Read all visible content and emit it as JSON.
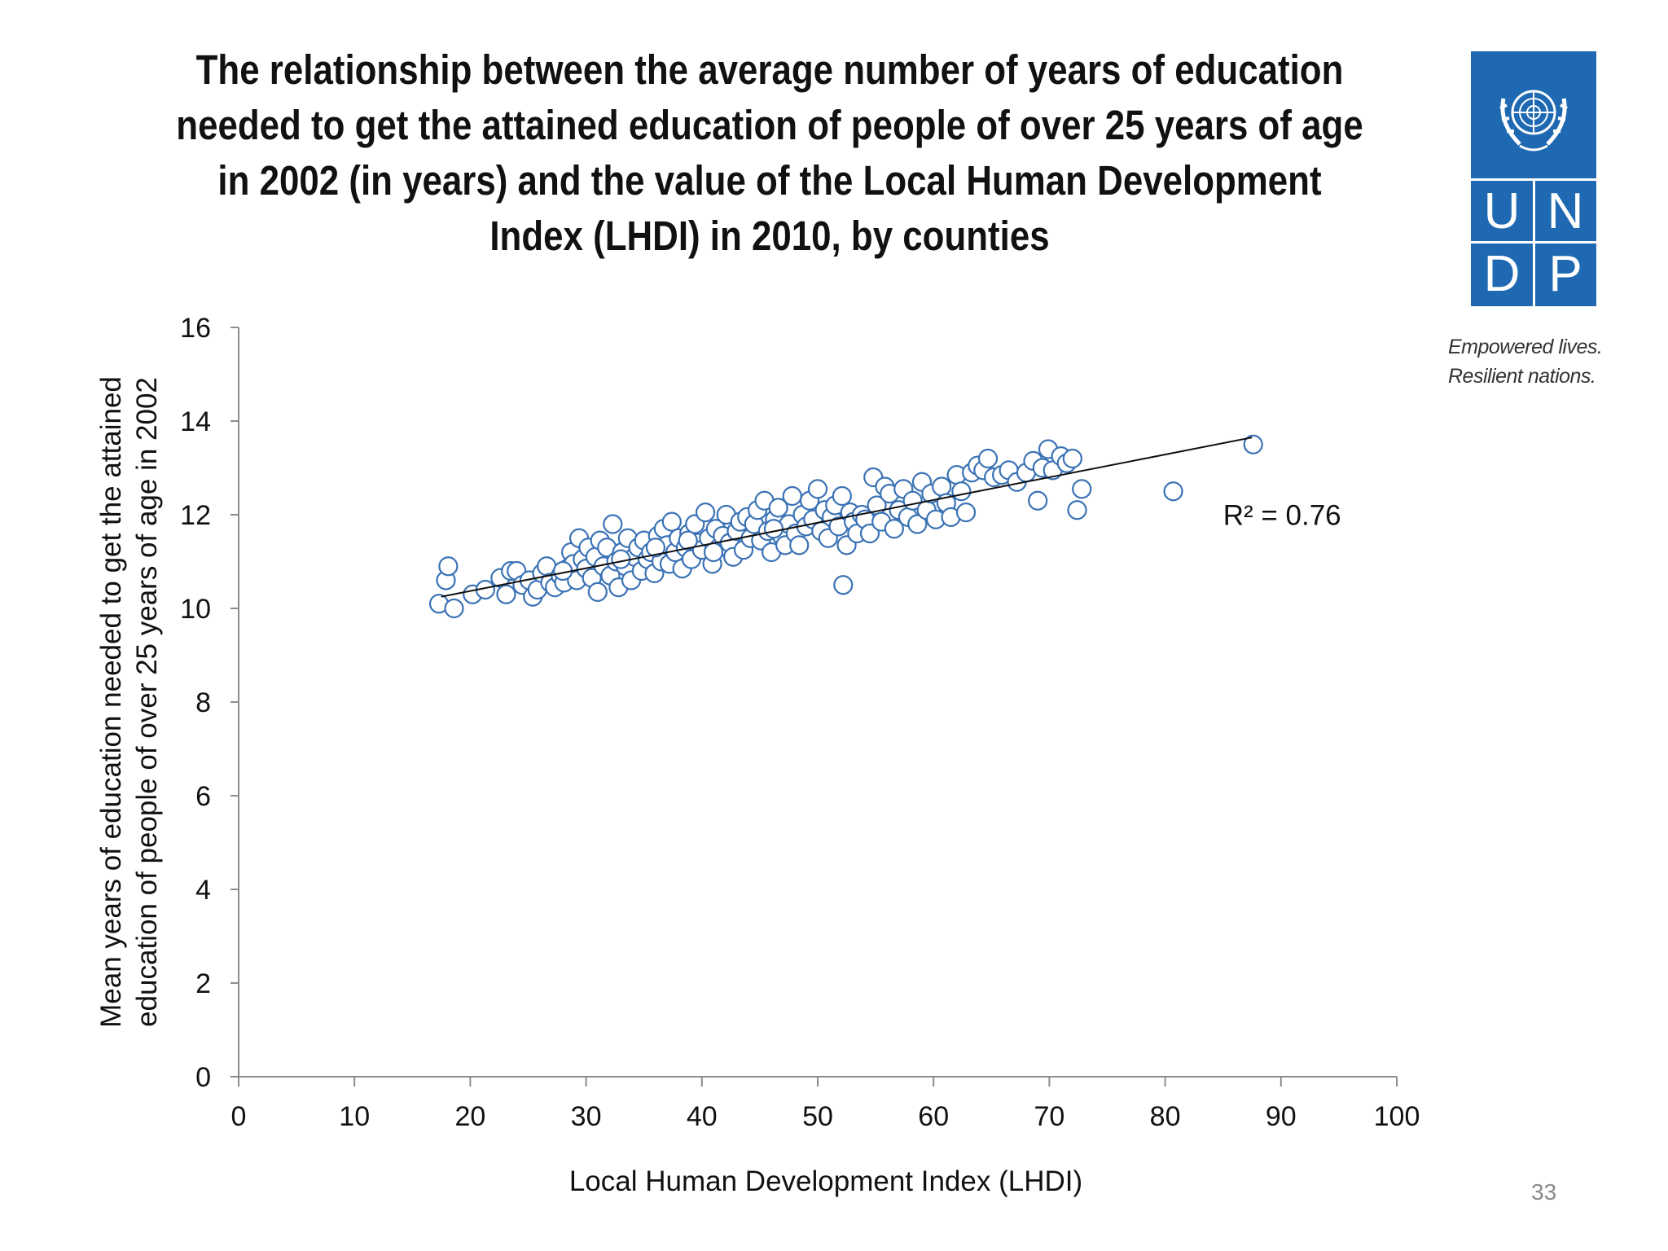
{
  "slide": {
    "title": "The relationship between the average number of years of education needed to get the attained education of people of over 25 years of age in 2002 (in years) and the value of the Local Human Development Index (LHDI) in 2010, by counties",
    "page_number": "33"
  },
  "logo": {
    "letters": [
      "U",
      "N",
      "D",
      "P"
    ],
    "tagline_line1": "Empowered lives.",
    "tagline_line2": "Resilient nations.",
    "color": "#1e69b2"
  },
  "chart_data": {
    "type": "scatter",
    "xlabel": "Local Human Development Index (LHDI)",
    "ylabel_line1": "Mean years of education needed to get the attained",
    "ylabel_line2": "education of people of over 25 years of age in 2002",
    "xlim": [
      0,
      100
    ],
    "ylim": [
      0,
      16
    ],
    "x_ticks": [
      "0",
      "10",
      "20",
      "30",
      "40",
      "50",
      "60",
      "70",
      "80",
      "90",
      "100"
    ],
    "y_ticks": [
      "0",
      "2",
      "4",
      "6",
      "8",
      "10",
      "12",
      "14",
      "16"
    ],
    "annotation": "R² = 0.76",
    "trendline": {
      "x": [
        17.5,
        87.5
      ],
      "y": [
        10.25,
        13.65
      ]
    },
    "marker_color": "#3a72b5",
    "grid": false,
    "points": [
      [
        17.3,
        10.1
      ],
      [
        17.9,
        10.6
      ],
      [
        18.1,
        10.9
      ],
      [
        18.6,
        10.0
      ],
      [
        20.2,
        10.3
      ],
      [
        21.3,
        10.4
      ],
      [
        22.6,
        10.65
      ],
      [
        23.1,
        10.3
      ],
      [
        23.5,
        10.8
      ],
      [
        24.0,
        10.8
      ],
      [
        24.5,
        10.5
      ],
      [
        25.1,
        10.6
      ],
      [
        25.4,
        10.25
      ],
      [
        25.8,
        10.4
      ],
      [
        26.2,
        10.75
      ],
      [
        26.6,
        10.9
      ],
      [
        26.9,
        10.55
      ],
      [
        27.3,
        10.45
      ],
      [
        27.8,
        10.7
      ],
      [
        28.1,
        10.55
      ],
      [
        28.4,
        10.85
      ],
      [
        28.7,
        11.2
      ],
      [
        28.9,
        10.95
      ],
      [
        29.2,
        10.6
      ],
      [
        29.4,
        11.5
      ],
      [
        29.7,
        11.05
      ],
      [
        30.0,
        10.85
      ],
      [
        30.2,
        11.3
      ],
      [
        30.5,
        10.65
      ],
      [
        30.8,
        11.1
      ],
      [
        31.0,
        10.35
      ],
      [
        31.2,
        11.45
      ],
      [
        31.5,
        10.9
      ],
      [
        31.8,
        11.3
      ],
      [
        32.1,
        10.7
      ],
      [
        32.3,
        11.8
      ],
      [
        32.6,
        11.0
      ],
      [
        32.8,
        10.45
      ],
      [
        33.1,
        11.2
      ],
      [
        33.4,
        10.9
      ],
      [
        33.6,
        11.5
      ],
      [
        33.9,
        10.6
      ],
      [
        34.2,
        11.1
      ],
      [
        34.5,
        11.3
      ],
      [
        34.8,
        10.8
      ],
      [
        35.0,
        11.45
      ],
      [
        35.3,
        11.05
      ],
      [
        35.6,
        11.2
      ],
      [
        35.9,
        10.75
      ],
      [
        36.2,
        11.55
      ],
      [
        36.5,
        11.0
      ],
      [
        36.7,
        11.7
      ],
      [
        37.0,
        11.35
      ],
      [
        37.2,
        10.95
      ],
      [
        37.4,
        11.85
      ],
      [
        37.7,
        11.2
      ],
      [
        38.0,
        11.5
      ],
      [
        38.3,
        10.85
      ],
      [
        38.6,
        11.3
      ],
      [
        38.9,
        11.6
      ],
      [
        39.1,
        11.05
      ],
      [
        39.4,
        11.8
      ],
      [
        39.7,
        11.4
      ],
      [
        40.0,
        11.25
      ],
      [
        40.3,
        12.05
      ],
      [
        40.6,
        11.5
      ],
      [
        40.9,
        10.95
      ],
      [
        41.2,
        11.7
      ],
      [
        41.5,
        11.3
      ],
      [
        41.8,
        11.55
      ],
      [
        42.1,
        12.0
      ],
      [
        42.4,
        11.4
      ],
      [
        42.7,
        11.1
      ],
      [
        43.0,
        11.65
      ],
      [
        43.3,
        11.85
      ],
      [
        43.6,
        11.25
      ],
      [
        43.9,
        11.95
      ],
      [
        44.2,
        11.5
      ],
      [
        44.5,
        11.8
      ],
      [
        44.8,
        12.1
      ],
      [
        45.1,
        11.45
      ],
      [
        45.4,
        12.3
      ],
      [
        45.7,
        11.65
      ],
      [
        46.0,
        11.2
      ],
      [
        46.3,
        11.9
      ],
      [
        46.6,
        12.15
      ],
      [
        46.9,
        11.55
      ],
      [
        47.2,
        11.35
      ],
      [
        47.5,
        11.8
      ],
      [
        47.8,
        12.4
      ],
      [
        48.1,
        11.6
      ],
      [
        48.4,
        11.35
      ],
      [
        48.7,
        12.0
      ],
      [
        49.0,
        11.75
      ],
      [
        49.3,
        12.3
      ],
      [
        49.6,
        11.9
      ],
      [
        50.0,
        12.55
      ],
      [
        50.3,
        11.65
      ],
      [
        50.6,
        12.1
      ],
      [
        50.9,
        11.5
      ],
      [
        51.2,
        11.95
      ],
      [
        51.5,
        12.2
      ],
      [
        51.8,
        11.75
      ],
      [
        52.1,
        12.4
      ],
      [
        52.2,
        10.5
      ],
      [
        52.5,
        11.35
      ],
      [
        52.8,
        12.05
      ],
      [
        53.1,
        11.85
      ],
      [
        53.4,
        11.6
      ],
      [
        53.8,
        12.0
      ],
      [
        54.1,
        11.9
      ],
      [
        54.5,
        11.6
      ],
      [
        54.8,
        12.8
      ],
      [
        55.1,
        12.2
      ],
      [
        55.5,
        11.85
      ],
      [
        55.8,
        12.6
      ],
      [
        56.2,
        12.45
      ],
      [
        56.6,
        11.7
      ],
      [
        57.0,
        12.1
      ],
      [
        57.4,
        12.55
      ],
      [
        57.8,
        11.95
      ],
      [
        58.2,
        12.3
      ],
      [
        58.6,
        11.8
      ],
      [
        59.0,
        12.7
      ],
      [
        59.4,
        12.1
      ],
      [
        59.8,
        12.45
      ],
      [
        60.2,
        11.9
      ],
      [
        60.7,
        12.6
      ],
      [
        61.1,
        12.25
      ],
      [
        61.5,
        11.95
      ],
      [
        62.0,
        12.85
      ],
      [
        62.4,
        12.5
      ],
      [
        62.8,
        12.05
      ],
      [
        63.3,
        12.9
      ],
      [
        63.8,
        13.05
      ],
      [
        64.3,
        12.95
      ],
      [
        64.7,
        13.2
      ],
      [
        65.2,
        12.8
      ],
      [
        65.9,
        12.85
      ],
      [
        66.5,
        12.95
      ],
      [
        67.2,
        12.7
      ],
      [
        68.0,
        12.9
      ],
      [
        68.6,
        13.15
      ],
      [
        69.0,
        12.3
      ],
      [
        69.4,
        13.0
      ],
      [
        69.9,
        13.4
      ],
      [
        70.3,
        12.95
      ],
      [
        71.0,
        13.25
      ],
      [
        71.5,
        13.1
      ],
      [
        72.0,
        13.2
      ],
      [
        72.4,
        12.1
      ],
      [
        72.8,
        12.55
      ],
      [
        80.7,
        12.5
      ],
      [
        87.6,
        13.5
      ],
      [
        38.8,
        11.45
      ],
      [
        41.0,
        11.2
      ],
      [
        46.2,
        11.7
      ],
      [
        33.0,
        11.05
      ],
      [
        28.0,
        10.8
      ],
      [
        36.0,
        11.3
      ]
    ]
  }
}
